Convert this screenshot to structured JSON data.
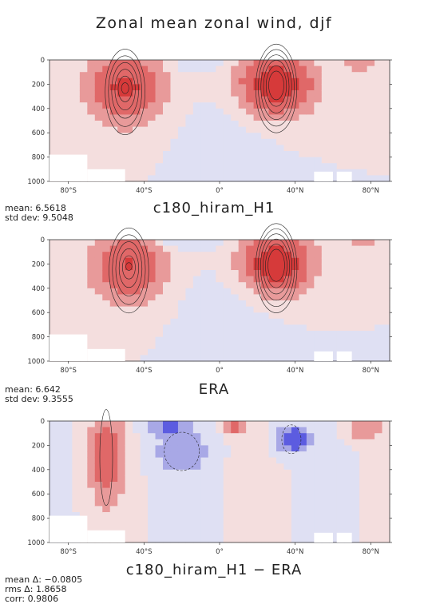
{
  "figure": {
    "title": "Zonal mean zonal wind, djf"
  },
  "colors": {
    "positive_light": "#f4dede",
    "positive_mid": "#e89a9a",
    "positive_strong": "#d63a3a",
    "negative_light": "#dfe0f3",
    "negative_mid": "#a8a8e6",
    "negative_strong": "#5c5ce0",
    "contour": "#222222"
  },
  "chart_data": [
    {
      "type": "heatmap",
      "title": "c180_hiram_H1",
      "xlabel": "",
      "ylabel": "",
      "xlim": [
        -90,
        90
      ],
      "ylim": [
        1000,
        0
      ],
      "x_ticks": [
        "80°S",
        "40°S",
        "0°",
        "40°N",
        "80°N"
      ],
      "y_ticks": [
        "0",
        "200",
        "400",
        "600",
        "800",
        "1000"
      ],
      "contour_levels": [
        -10,
        -5,
        0,
        5,
        10,
        15,
        20,
        25,
        30
      ],
      "jets": [
        {
          "lat": -50,
          "pressure": 230,
          "peak": 28
        },
        {
          "lat": 30,
          "pressure": 200,
          "peak": 36
        }
      ],
      "stats": [
        {
          "label": "mean:",
          "value": "6.5618"
        },
        {
          "label": "std dev:",
          "value": "9.5048"
        }
      ]
    },
    {
      "type": "heatmap",
      "title": "ERA",
      "xlabel": "",
      "ylabel": "",
      "xlim": [
        -90,
        90
      ],
      "ylim": [
        1000,
        0
      ],
      "x_ticks": [
        "80°S",
        "40°S",
        "0°",
        "40°N",
        "80°N"
      ],
      "y_ticks": [
        "0",
        "200",
        "400",
        "600",
        "800",
        "1000"
      ],
      "contour_levels": [
        -10,
        -5,
        0,
        5,
        10,
        15,
        20,
        25,
        30
      ],
      "jets": [
        {
          "lat": -48,
          "pressure": 220,
          "peak": 27
        },
        {
          "lat": 30,
          "pressure": 200,
          "peak": 38
        }
      ],
      "stats": [
        {
          "label": "mean:",
          "value": "6.642"
        },
        {
          "label": "std dev:",
          "value": "9.3555"
        }
      ]
    },
    {
      "type": "heatmap",
      "title": "c180_hiram_H1 − ERA",
      "xlabel": "",
      "ylabel": "",
      "xlim": [
        -90,
        90
      ],
      "ylim": [
        1000,
        0
      ],
      "x_ticks": [
        "80°S",
        "40°S",
        "0°",
        "40°N",
        "80°N"
      ],
      "y_ticks": [
        "0",
        "200",
        "400",
        "600",
        "800",
        "1000"
      ],
      "contour_levels": [
        -6,
        -4,
        -2,
        0,
        2,
        4,
        6
      ],
      "stats": [
        {
          "label": "mean Δ:",
          "value": "−0.0805"
        },
        {
          "label": "rms Δ:",
          "value": "1.8658"
        },
        {
          "label": "corr:",
          "value": "0.9806"
        }
      ]
    }
  ]
}
